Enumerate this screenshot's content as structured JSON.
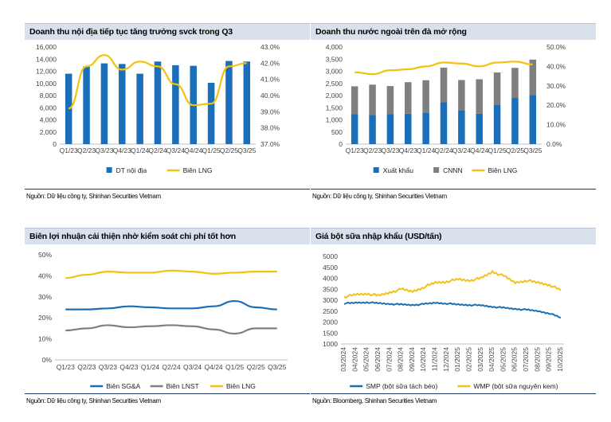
{
  "colors": {
    "blue": "#1a6fb8",
    "gray": "#7f7f7f",
    "yellow": "#f4c20d",
    "smp": "#1c6fb0",
    "wmp": "#f2c319",
    "axis": "#bfbfbf"
  },
  "panels": [
    {
      "title": "Doanh thu nội địa tiếp tục tăng trưởng svck trong Q3",
      "source": "Nguồn: Dữ liệu công ty, Shinhan Securities Vietnam"
    },
    {
      "title": "Doanh thu nước ngoài trên đà mở rộng",
      "source": "Nguồn: Dữ liệu công ty, Shinhan Securities Vietnam"
    },
    {
      "title": "Biên lợi nhuận cải thiện nhờ kiểm soát chi phí tốt hơn",
      "source": "Nguồn: Dữ liệu công ty, Shinhan Securities Vietnam"
    },
    {
      "title": "Giá bột sữa nhập khẩu (USD/tấn)",
      "source": "Nguồn: Bloomberg, Shinhan Securities Vietnam"
    }
  ],
  "chart_data": [
    {
      "type": "bar",
      "categories": [
        "Q1/23",
        "Q2/23",
        "Q3/23",
        "Q4/23",
        "Q1/24",
        "Q2/24",
        "Q3/24",
        "Q4/24",
        "Q1/25",
        "Q2/25",
        "Q3/25"
      ],
      "series": [
        {
          "name": "DT nội địa",
          "type": "bar",
          "axis": "left",
          "values": [
            11600,
            12800,
            13300,
            13200,
            11600,
            13600,
            13000,
            12900,
            10100,
            13700,
            13600
          ]
        },
        {
          "name": "Biên LNG",
          "type": "line",
          "axis": "right",
          "values": [
            39.2,
            41.8,
            42.5,
            41.6,
            42.1,
            41.8,
            40.7,
            39.4,
            39.5,
            41.8,
            42.0
          ]
        }
      ],
      "ylim": [
        0,
        16000
      ],
      "yticks": [
        "0",
        "2,000",
        "4,000",
        "6,000",
        "8,000",
        "10,000",
        "12,000",
        "14,000",
        "16,000"
      ],
      "y2lim": [
        37.0,
        43.0
      ],
      "y2ticks": [
        "37.0%",
        "38.0%",
        "39.0%",
        "40.0%",
        "41.0%",
        "42.0%",
        "43.0%"
      ],
      "legend": [
        "DT nội địa",
        "Biên LNG"
      ]
    },
    {
      "type": "bar",
      "categories": [
        "Q1/23",
        "Q2/23",
        "Q3/23",
        "Q4/23",
        "Q1/24",
        "Q2/24",
        "Q3/24",
        "Q4/24",
        "Q1/25",
        "Q2/25",
        "Q3/25"
      ],
      "series": [
        {
          "name": "Xuất khẩu",
          "type": "bar",
          "stack": "a",
          "axis": "left",
          "values": [
            1230,
            1200,
            1230,
            1250,
            1300,
            1720,
            1390,
            1250,
            1620,
            1900,
            2020
          ]
        },
        {
          "name": "CNNN",
          "type": "bar",
          "stack": "a",
          "axis": "left",
          "values": [
            1150,
            1250,
            1160,
            1300,
            1330,
            1430,
            1250,
            1420,
            1330,
            1240,
            1460
          ]
        },
        {
          "name": "Biên LNG",
          "type": "line",
          "axis": "right",
          "values": [
            37.0,
            36.0,
            38.0,
            38.5,
            40.0,
            42.0,
            41.5,
            40.0,
            42.0,
            42.5,
            41.0
          ]
        }
      ],
      "ylim": [
        0,
        4000
      ],
      "yticks": [
        "0",
        "500",
        "1,000",
        "1,500",
        "2,000",
        "2,500",
        "3,000",
        "3,500",
        "4,000"
      ],
      "y2lim": [
        0,
        50
      ],
      "y2ticks": [
        "0.0%",
        "10.0%",
        "20.0%",
        "30.0%",
        "40.0%",
        "50.0%"
      ],
      "legend": [
        "Xuất khẩu",
        "CNNN",
        "Biên LNG"
      ]
    },
    {
      "type": "line",
      "categories": [
        "Q1/23",
        "Q2/23",
        "Q3/23",
        "Q4/23",
        "Q1/24",
        "Q2/24",
        "Q3/24",
        "Q4/24",
        "Q1/25",
        "Q2/25",
        "Q3/25"
      ],
      "series": [
        {
          "name": "Biên SG&A",
          "values": [
            24,
            24,
            24.5,
            25.5,
            25,
            24.5,
            24.5,
            25.5,
            28,
            25,
            24
          ]
        },
        {
          "name": "Biên LNST",
          "values": [
            14,
            15,
            16.5,
            15.5,
            16,
            16.5,
            16,
            14.5,
            12.5,
            15,
            15
          ]
        },
        {
          "name": "Biên LNG",
          "values": [
            39,
            40.5,
            42,
            41.5,
            41.5,
            42.5,
            42,
            41,
            41.5,
            42,
            42
          ]
        }
      ],
      "ylim": [
        0,
        50
      ],
      "yticks": [
        "0%",
        "10%",
        "20%",
        "30%",
        "40%",
        "50%"
      ],
      "legend": [
        "Biên SG&A",
        "Biên LNST",
        "Biên LNG"
      ]
    },
    {
      "type": "line",
      "x": [
        "03/2024",
        "04/2024",
        "05/2024",
        "06/2024",
        "07/2024",
        "08/2024",
        "09/2024",
        "10/2024",
        "11/2024",
        "12/2024",
        "01/2025",
        "02/2025",
        "03/2025",
        "04/2025",
        "05/2025",
        "06/2025",
        "07/2025",
        "08/2025",
        "09/2025",
        "10/2025"
      ],
      "series": [
        {
          "name": "SMP (bột sữa tách béo)",
          "values": [
            2850,
            2880,
            2900,
            2860,
            2830,
            2800,
            2780,
            2820,
            2880,
            2850,
            2800,
            2780,
            2760,
            2700,
            2650,
            2600,
            2560,
            2500,
            2400,
            2200
          ]
        },
        {
          "name": "WMP (bột sữa nguyên kem)",
          "values": [
            3150,
            3250,
            3300,
            3200,
            3350,
            3500,
            3400,
            3600,
            3800,
            3850,
            3950,
            3900,
            4000,
            4300,
            4100,
            3800,
            3900,
            3800,
            3700,
            3450
          ]
        }
      ],
      "ylim": [
        1000,
        5000
      ],
      "yticks": [
        "1000",
        "1500",
        "2000",
        "2500",
        "3000",
        "3500",
        "4000",
        "4500",
        "5000"
      ],
      "legend": [
        "SMP (bột sữa tách béo)",
        "WMP (bột sữa nguyên kem)"
      ]
    }
  ]
}
